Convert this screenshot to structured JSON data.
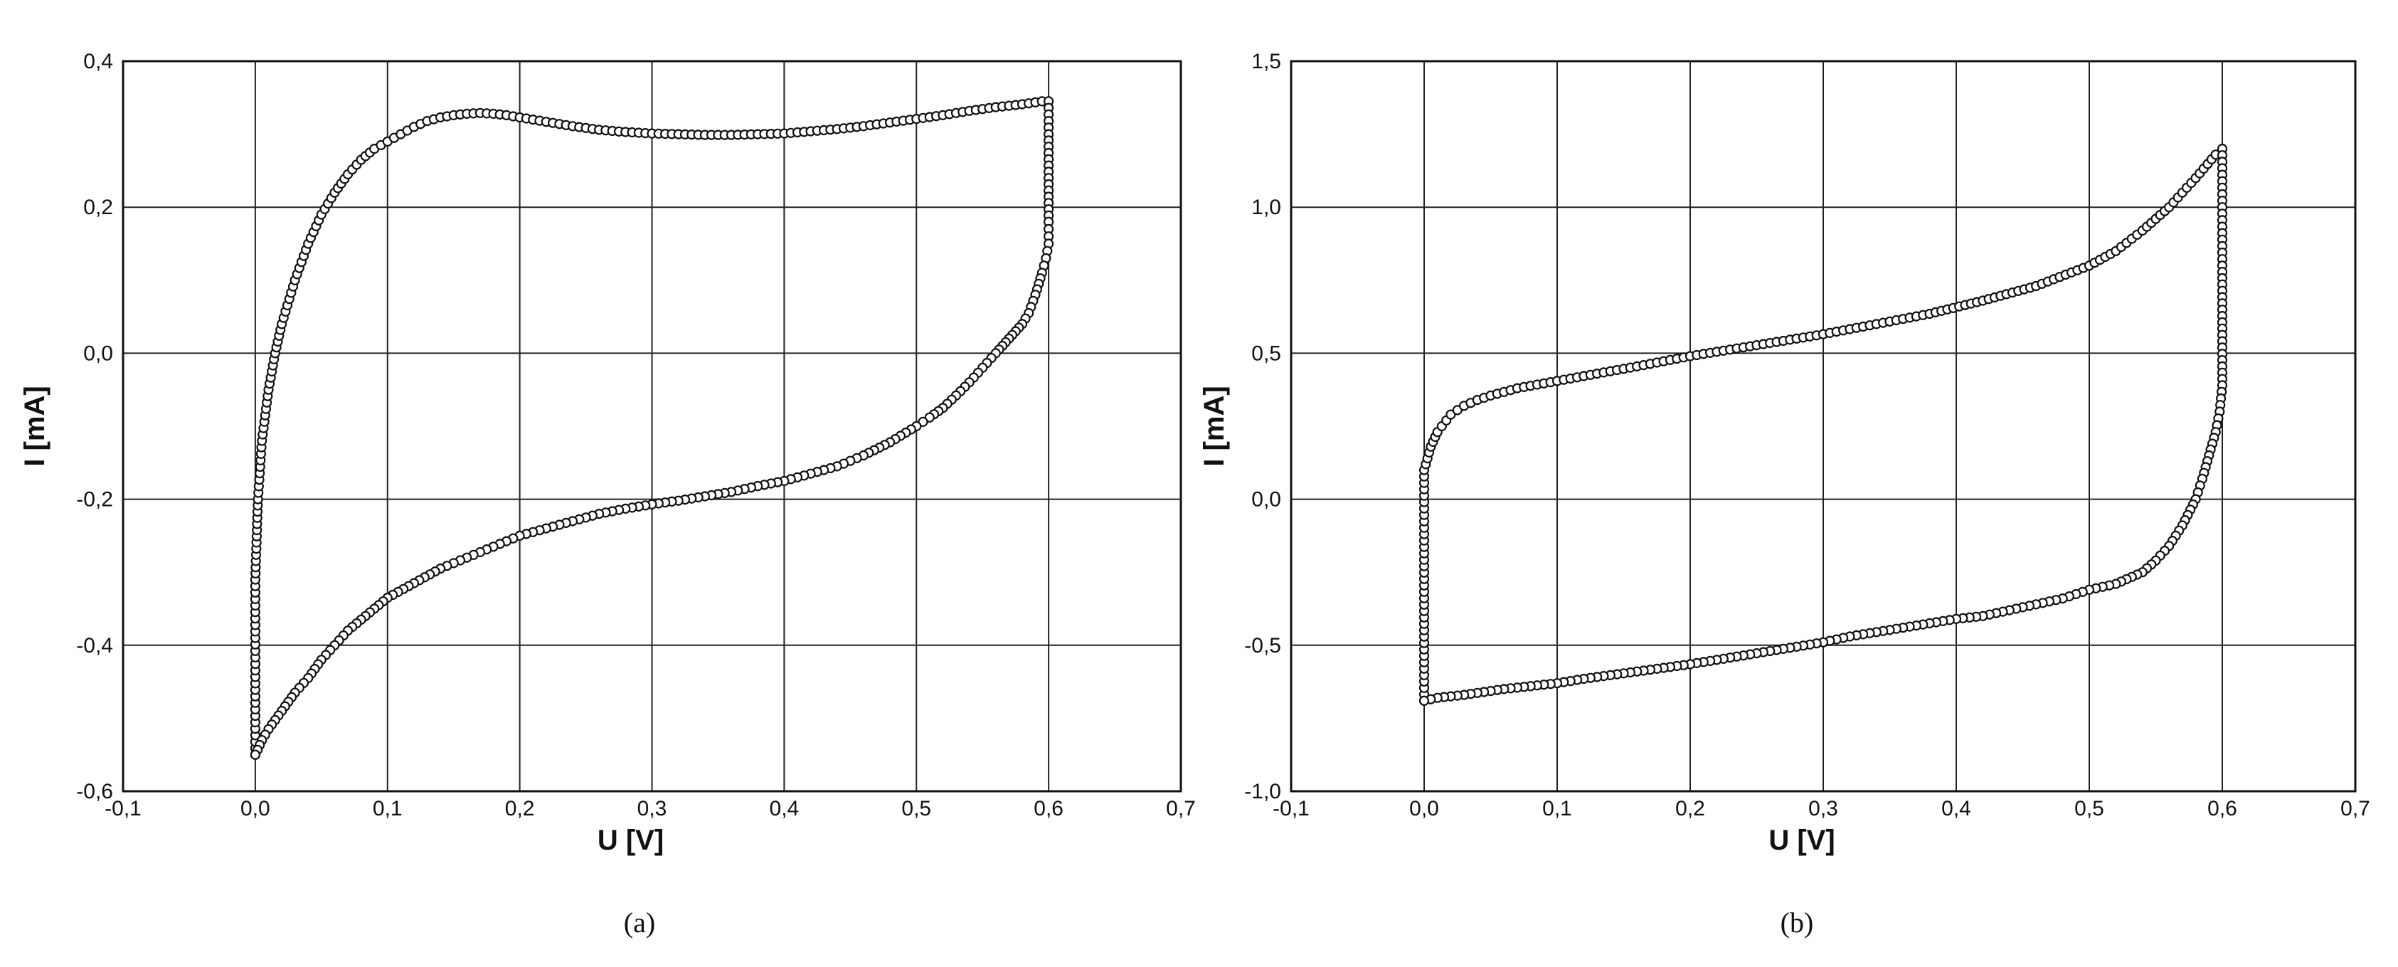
{
  "chart_data": [
    {
      "type": "line",
      "caption": "(a)",
      "xlabel": "U [V]",
      "ylabel": "I [mA]",
      "xlim": [
        -0.1,
        0.7
      ],
      "ylim": [
        -0.6,
        0.4
      ],
      "xticks": [
        "-0,1",
        "0,0",
        "0,1",
        "0,2",
        "0,3",
        "0,4",
        "0,5",
        "0,6",
        "0,7"
      ],
      "yticks": [
        "-0,6",
        "-0,4",
        "-0,2",
        "0,0",
        "0,2",
        "0,4"
      ],
      "grid": true,
      "series": [
        {
          "x": [
            0.0,
            0.0,
            0.002,
            0.005,
            0.01,
            0.015,
            0.02,
            0.03,
            0.04,
            0.05,
            0.06,
            0.07,
            0.08,
            0.09,
            0.1,
            0.11,
            0.12,
            0.13,
            0.14,
            0.15,
            0.16,
            0.17,
            0.18,
            0.19,
            0.2,
            0.22,
            0.24,
            0.26,
            0.28,
            0.3,
            0.32,
            0.34,
            0.36,
            0.38,
            0.4,
            0.42,
            0.44,
            0.46,
            0.48,
            0.5,
            0.52,
            0.54,
            0.56,
            0.58,
            0.595,
            0.6,
            0.6,
            0.6,
            0.6,
            0.598,
            0.595,
            0.59,
            0.585,
            0.58,
            0.575,
            0.57,
            0.565,
            0.56,
            0.55,
            0.54,
            0.53,
            0.52,
            0.51,
            0.5,
            0.48,
            0.46,
            0.44,
            0.42,
            0.4,
            0.38,
            0.36,
            0.34,
            0.32,
            0.3,
            0.28,
            0.26,
            0.24,
            0.22,
            0.2,
            0.18,
            0.16,
            0.14,
            0.12,
            0.1,
            0.09,
            0.08,
            0.07,
            0.06,
            0.05,
            0.04,
            0.03,
            0.02,
            0.01,
            0.005,
            0.0
          ],
          "y": [
            -0.55,
            -0.31,
            -0.2,
            -0.12,
            -0.05,
            0.0,
            0.04,
            0.1,
            0.15,
            0.19,
            0.22,
            0.245,
            0.265,
            0.28,
            0.29,
            0.3,
            0.31,
            0.318,
            0.323,
            0.326,
            0.328,
            0.329,
            0.328,
            0.326,
            0.323,
            0.317,
            0.311,
            0.306,
            0.303,
            0.301,
            0.3,
            0.299,
            0.299,
            0.3,
            0.301,
            0.304,
            0.307,
            0.311,
            0.316,
            0.321,
            0.326,
            0.332,
            0.337,
            0.341,
            0.345,
            0.345,
            0.3,
            0.18,
            0.15,
            0.13,
            0.11,
            0.08,
            0.055,
            0.04,
            0.03,
            0.02,
            0.01,
            0.0,
            -0.02,
            -0.04,
            -0.058,
            -0.075,
            -0.088,
            -0.1,
            -0.122,
            -0.14,
            -0.155,
            -0.165,
            -0.175,
            -0.182,
            -0.19,
            -0.196,
            -0.202,
            -0.207,
            -0.213,
            -0.22,
            -0.23,
            -0.24,
            -0.25,
            -0.265,
            -0.28,
            -0.295,
            -0.315,
            -0.335,
            -0.35,
            -0.365,
            -0.38,
            -0.4,
            -0.42,
            -0.445,
            -0.465,
            -0.49,
            -0.515,
            -0.53,
            -0.55
          ]
        }
      ]
    },
    {
      "type": "line",
      "caption": "(b)",
      "xlabel": "U [V]",
      "ylabel": "I [mA]",
      "xlim": [
        -0.1,
        0.7
      ],
      "ylim": [
        -1.0,
        1.5
      ],
      "xticks": [
        "-0,1",
        "0,0",
        "0,1",
        "0,2",
        "0,3",
        "0,4",
        "0,5",
        "0,6",
        "0,7"
      ],
      "yticks": [
        "-1,0",
        "-0,5",
        "0,0",
        "0,5",
        "1,0",
        "1,5"
      ],
      "grid": true,
      "series": [
        {
          "x": [
            0.0,
            0.0,
            0.005,
            0.01,
            0.02,
            0.03,
            0.04,
            0.05,
            0.07,
            0.1,
            0.13,
            0.16,
            0.2,
            0.24,
            0.28,
            0.3,
            0.34,
            0.38,
            0.42,
            0.46,
            0.5,
            0.52,
            0.54,
            0.56,
            0.58,
            0.595,
            0.6,
            0.6,
            0.6,
            0.598,
            0.595,
            0.59,
            0.585,
            0.58,
            0.57,
            0.56,
            0.55,
            0.54,
            0.52,
            0.5,
            0.48,
            0.46,
            0.44,
            0.42,
            0.4,
            0.36,
            0.32,
            0.3,
            0.26,
            0.22,
            0.2,
            0.16,
            0.12,
            0.1,
            0.06,
            0.03,
            0.01,
            0.0
          ],
          "y": [
            -0.69,
            0.1,
            0.18,
            0.23,
            0.29,
            0.32,
            0.34,
            0.355,
            0.38,
            0.405,
            0.43,
            0.455,
            0.49,
            0.52,
            0.55,
            0.565,
            0.6,
            0.635,
            0.68,
            0.73,
            0.8,
            0.85,
            0.92,
            1.0,
            1.1,
            1.18,
            1.2,
            0.8,
            0.39,
            0.3,
            0.23,
            0.15,
            0.07,
            0.0,
            -0.09,
            -0.16,
            -0.21,
            -0.25,
            -0.29,
            -0.31,
            -0.34,
            -0.36,
            -0.38,
            -0.4,
            -0.41,
            -0.44,
            -0.47,
            -0.49,
            -0.52,
            -0.55,
            -0.565,
            -0.59,
            -0.615,
            -0.63,
            -0.65,
            -0.67,
            -0.68,
            -0.69
          ]
        }
      ]
    }
  ]
}
